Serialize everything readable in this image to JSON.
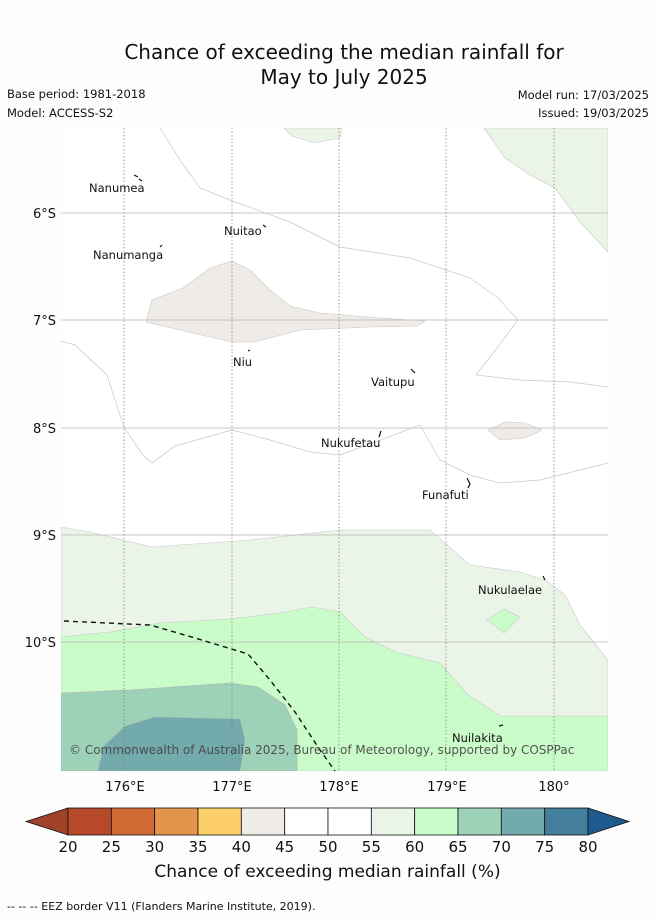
{
  "title": {
    "line1": "Chance of exceeding the median rainfall for",
    "line2": "May to July 2025"
  },
  "meta": {
    "base_period": "Base period: 1981-2018",
    "model": "Model: ACCESS-S2",
    "model_run": "Model run: 17/03/2025",
    "issued": "Issued: 19/03/2025"
  },
  "map": {
    "lat_labels": [
      "6°S",
      "7°S",
      "8°S",
      "9°S",
      "10°S"
    ],
    "lon_labels": [
      "176°E",
      "177°E",
      "178°E",
      "179°E",
      "180°"
    ],
    "islands": [
      "Nanumea",
      "Nuitao",
      "Nanumanga",
      "Niu",
      "Vaitupu",
      "Nukufetau",
      "Funafuti",
      "Nukulaelae",
      "Nuilakita"
    ],
    "copyright": "© Commonwealth of Australia 2025, Bureau of Meteorology, supported by COSPPac"
  },
  "colorbar": {
    "ticks": [
      "20",
      "25",
      "30",
      "35",
      "40",
      "45",
      "50",
      "55",
      "60",
      "65",
      "70",
      "75",
      "80"
    ],
    "colors": [
      "#b5492a",
      "#cf6a34",
      "#e3964b",
      "#fdcf68",
      "#efebe6",
      "#ffffff",
      "#ffffff",
      "#eaf5e7",
      "#c9fcc8",
      "#9dd2b8",
      "#73aaab",
      "#437e9b"
    ],
    "under_color": "#a0412a",
    "over_color": "#1f5a8e",
    "label": "Chance of exceeding median rainfall (%)"
  },
  "footnote": "-- -- -- EEZ border V11 (Flanders Marine Institute, 2019)."
}
